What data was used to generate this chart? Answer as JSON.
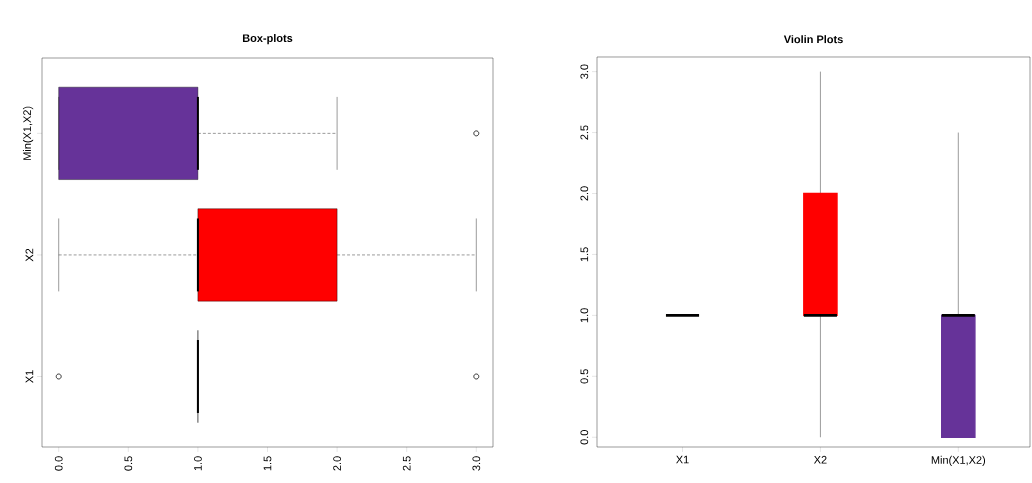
{
  "chart_data": [
    {
      "type": "box",
      "title": "Box-plots",
      "orientation": "horizontal",
      "categories": [
        "Min(X1,X2)",
        "X2",
        "X1"
      ],
      "boxes": [
        {
          "low": 0,
          "q1": 0,
          "median": 1,
          "q3": 1,
          "high": 2,
          "outliers": [
            3
          ]
        },
        {
          "low": 0,
          "q1": 1,
          "median": 1,
          "q3": 2,
          "high": 3
        },
        {
          "low": 1,
          "q1": 1,
          "median": 1,
          "q3": 1,
          "high": 1,
          "outliers": [
            0,
            3
          ]
        }
      ],
      "colors": [
        "#663399",
        "#ff0000",
        "#000000"
      ],
      "xlim": [
        -0.12,
        3.12
      ],
      "xticks": [
        {
          "value": 0,
          "label": "0.0"
        },
        {
          "value": 0.5,
          "label": "0.5"
        },
        {
          "value": 1,
          "label": "1.0"
        },
        {
          "value": 1.5,
          "label": "1.5"
        },
        {
          "value": 2,
          "label": "2.0"
        },
        {
          "value": 2.5,
          "label": "2.5"
        },
        {
          "value": 3,
          "label": "3.0"
        }
      ]
    },
    {
      "type": "box",
      "title": "Violin Plots",
      "categories": [
        "X1",
        "X2",
        "Min(X1,X2)"
      ],
      "boxes": [
        {
          "low": 1,
          "q1": 1,
          "median": 1,
          "q3": 1,
          "high": 1
        },
        {
          "low": 0,
          "q1": 1,
          "median": 1,
          "q3": 2,
          "high": 3
        },
        {
          "low": 0,
          "q1": 0,
          "median": 1,
          "q3": 1,
          "high": 2.5
        }
      ],
      "colors": [
        "#ffff00",
        "#ff0000",
        "#663399"
      ],
      "ylim": [
        -0.08,
        3.12
      ],
      "yticks": [
        {
          "value": 0,
          "label": "0.0"
        },
        {
          "value": 0.5,
          "label": "0.5"
        },
        {
          "value": 1,
          "label": "1.0"
        },
        {
          "value": 1.5,
          "label": "1.5"
        },
        {
          "value": 2,
          "label": "2.0"
        },
        {
          "value": 2.5,
          "label": "2.5"
        },
        {
          "value": 3,
          "label": "3.0"
        }
      ]
    }
  ]
}
